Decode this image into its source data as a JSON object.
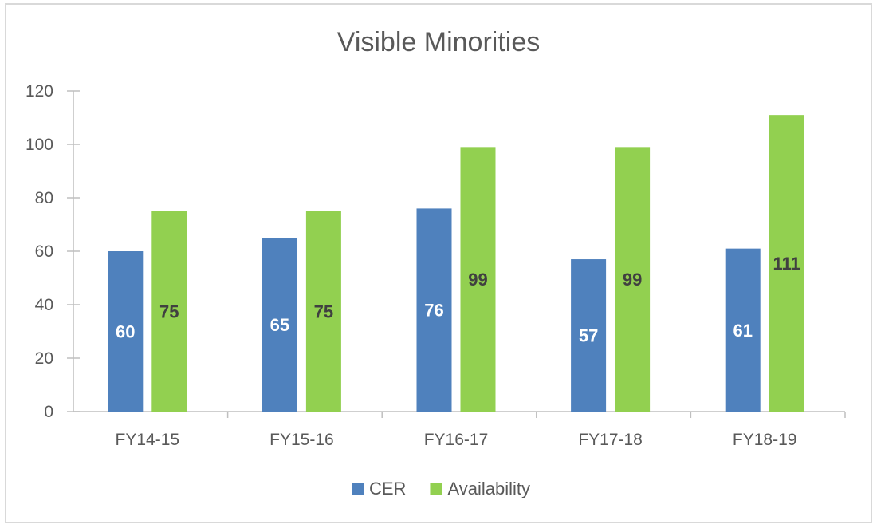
{
  "chart_data": {
    "type": "bar",
    "title": "Visible Minorities",
    "xlabel": "",
    "ylabel": "",
    "categories": [
      "FY14-15",
      "FY15-16",
      "FY16-17",
      "FY17-18",
      "FY18-19"
    ],
    "series": [
      {
        "name": "CER",
        "values": [
          60,
          65,
          76,
          57,
          61
        ],
        "color": "#4F81BD",
        "label_color": "#ffffff"
      },
      {
        "name": "Availability",
        "values": [
          75,
          75,
          99,
          99,
          111
        ],
        "color": "#92D050",
        "label_color": "#404040"
      }
    ],
    "ylim": [
      0,
      120
    ],
    "yticks": [
      0,
      20,
      40,
      60,
      80,
      100,
      120
    ],
    "grid": false,
    "legend": "bottom"
  }
}
